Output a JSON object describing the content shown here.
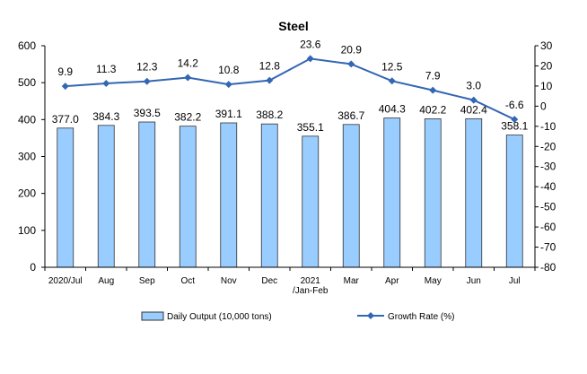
{
  "chart_data": {
    "type": "bar",
    "title": "Steel",
    "categories": [
      "2020/Jul",
      "Aug",
      "Sep",
      "Oct",
      "Nov",
      "Dec",
      "2021\n/Jan-Feb",
      "Mar",
      "Apr",
      "May",
      "Jun",
      "Jul"
    ],
    "series": [
      {
        "name": "Daily Output (10,000 tons)",
        "type": "bar",
        "axis": "left",
        "values": [
          377.0,
          384.3,
          393.5,
          382.2,
          391.1,
          388.2,
          355.1,
          386.7,
          404.3,
          402.2,
          402.4,
          358.1
        ],
        "labels": [
          "377.0",
          "384.3",
          "393.5",
          "382.2",
          "391.1",
          "388.2",
          "355.1",
          "386.7",
          "404.3",
          "402.2",
          "402.4",
          "358.1"
        ]
      },
      {
        "name": "Growth Rate (%)",
        "type": "line",
        "axis": "right",
        "values": [
          9.9,
          11.3,
          12.3,
          14.2,
          10.8,
          12.8,
          23.6,
          20.9,
          12.5,
          7.9,
          3.0,
          -6.6
        ],
        "labels": [
          "9.9",
          "11.3",
          "12.3",
          "14.2",
          "10.8",
          "12.8",
          "23.6",
          "20.9",
          "12.5",
          "7.9",
          "3.0",
          "-6.6"
        ]
      }
    ],
    "y_left": {
      "min": 0,
      "max": 600,
      "step": 100,
      "ticks": [
        "0",
        "100",
        "200",
        "300",
        "400",
        "500",
        "600"
      ]
    },
    "y_right": {
      "min": -80,
      "max": 30,
      "step": 10,
      "ticks": [
        "30",
        "20",
        "10",
        "0",
        "-10",
        "-20",
        "-30",
        "-40",
        "-50",
        "-60",
        "-70",
        "-80"
      ]
    },
    "grid": false,
    "legend_position": "bottom",
    "colors": {
      "bar_fill": "#99CCFF",
      "bar_stroke": "#333333",
      "line": "#3366B3",
      "axis": "#000000"
    }
  }
}
